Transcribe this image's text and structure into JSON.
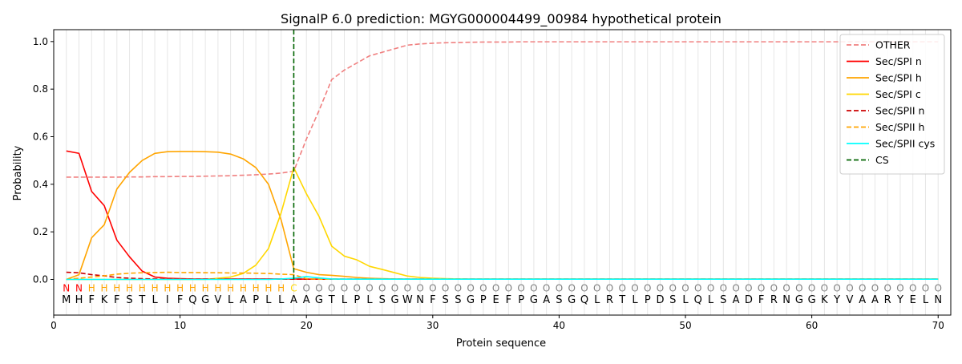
{
  "chart_data": {
    "type": "line",
    "title": "SignalP 6.0 prediction: MGYG000004499_00984 hypothetical protein",
    "xlabel": "Protein sequence",
    "ylabel": "Probability",
    "xlim": [
      0,
      71
    ],
    "ylim": [
      -0.15,
      1.05
    ],
    "x_ticks": [
      0,
      10,
      20,
      30,
      40,
      50,
      60,
      70
    ],
    "y_ticks": [
      0.0,
      0.2,
      0.4,
      0.6,
      0.8,
      1.0
    ],
    "x_tick_labels": [
      "0",
      "10",
      "20",
      "30",
      "40",
      "50",
      "60",
      "70"
    ],
    "y_tick_labels": [
      "0.0",
      "0.2",
      "0.4",
      "0.6",
      "0.8",
      "1.0"
    ],
    "grid": "vertical lines at every residue",
    "legend_position": "top-right",
    "sequence": [
      "M",
      "H",
      "F",
      "K",
      "F",
      "S",
      "T",
      "L",
      "I",
      "F",
      "Q",
      "G",
      "V",
      "L",
      "A",
      "P",
      "L",
      "L",
      "A",
      "A",
      "G",
      "T",
      "L",
      "P",
      "L",
      "S",
      "G",
      "W",
      "N",
      "F",
      "S",
      "S",
      "G",
      "P",
      "E",
      "F",
      "P",
      "G",
      "A",
      "S",
      "G",
      "Q",
      "L",
      "R",
      "T",
      "L",
      "P",
      "D",
      "S",
      "L",
      "Q",
      "L",
      "S",
      "A",
      "D",
      "F",
      "R",
      "N",
      "G",
      "G",
      "K",
      "Y",
      "V",
      "A",
      "A",
      "R",
      "Y",
      "E",
      "L",
      "N"
    ],
    "region_labels": [
      "N",
      "N",
      "H",
      "H",
      "H",
      "H",
      "H",
      "H",
      "H",
      "H",
      "H",
      "H",
      "H",
      "H",
      "H",
      "H",
      "H",
      "H",
      "C",
      "O",
      "O",
      "O",
      "O",
      "O",
      "O",
      "O",
      "O",
      "O",
      "O",
      "O",
      "O",
      "O",
      "O",
      "O",
      "O",
      "O",
      "O",
      "O",
      "O",
      "O",
      "O",
      "O",
      "O",
      "O",
      "O",
      "O",
      "O",
      "O",
      "O",
      "O",
      "O",
      "O",
      "O",
      "O",
      "O",
      "O",
      "O",
      "O",
      "O",
      "O",
      "O",
      "O",
      "O",
      "O",
      "O",
      "O",
      "O",
      "O",
      "O",
      "O"
    ],
    "region_colors": {
      "N": "#ff0000",
      "H": "#ffa500",
      "C": "#ffd700",
      "O": "#808080"
    },
    "cs_position": 19,
    "x": [
      1,
      2,
      3,
      4,
      5,
      6,
      7,
      8,
      9,
      10,
      11,
      12,
      13,
      14,
      15,
      16,
      17,
      18,
      19,
      20,
      21,
      22,
      23,
      24,
      25,
      26,
      27,
      28,
      29,
      30,
      31,
      32,
      33,
      34,
      35,
      36,
      37,
      38,
      39,
      40,
      41,
      42,
      43,
      44,
      45,
      46,
      47,
      48,
      49,
      50,
      51,
      52,
      53,
      54,
      55,
      56,
      57,
      58,
      59,
      60,
      61,
      62,
      63,
      64,
      65,
      66,
      67,
      68,
      69,
      70
    ],
    "series": [
      {
        "name": "OTHER",
        "color": "#f08080",
        "style": "dashed",
        "values": [
          0.43,
          0.43,
          0.43,
          0.43,
          0.43,
          0.431,
          0.431,
          0.432,
          0.432,
          0.433,
          0.433,
          0.434,
          0.435,
          0.436,
          0.438,
          0.44,
          0.443,
          0.447,
          0.455,
          0.59,
          0.71,
          0.84,
          0.88,
          0.91,
          0.94,
          0.955,
          0.97,
          0.985,
          0.99,
          0.993,
          0.995,
          0.996,
          0.997,
          0.998,
          0.998,
          0.998,
          0.999,
          0.999,
          0.999,
          0.999,
          0.999,
          0.999,
          0.999,
          0.999,
          0.999,
          0.999,
          0.999,
          0.999,
          0.999,
          0.999,
          0.999,
          0.999,
          0.999,
          0.999,
          0.999,
          0.999,
          0.999,
          0.999,
          0.999,
          0.999,
          0.999,
          0.999,
          0.999,
          0.999,
          0.999,
          0.999,
          0.999,
          0.999,
          0.999,
          0.999
        ]
      },
      {
        "name": "Sec/SPI n",
        "color": "#ff0000",
        "style": "solid",
        "values": [
          0.54,
          0.53,
          0.37,
          0.31,
          0.165,
          0.095,
          0.035,
          0.01,
          0.005,
          0.003,
          0.002,
          0.002,
          0.002,
          0.002,
          0.002,
          0.002,
          0.002,
          0.002,
          0.002,
          0.001,
          0.001,
          0.001,
          0.001,
          0.001,
          0.001,
          0.001,
          0.001,
          0.001,
          0.001,
          0.001,
          0.001,
          0.001,
          0.001,
          0.001,
          0.001,
          0.001,
          0.001,
          0.001,
          0.001,
          0.001,
          0.001,
          0.001,
          0.001,
          0.001,
          0.001,
          0.001,
          0.001,
          0.001,
          0.001,
          0.001,
          0.001,
          0.001,
          0.001,
          0.001,
          0.001,
          0.001,
          0.001,
          0.001,
          0.001,
          0.001,
          0.001,
          0.001,
          0.001,
          0.001,
          0.001,
          0.001,
          0.001,
          0.001,
          0.001,
          0.001
        ]
      },
      {
        "name": "Sec/SPI h",
        "color": "#ffa500",
        "style": "solid",
        "values": [
          0.0,
          0.02,
          0.175,
          0.23,
          0.38,
          0.45,
          0.5,
          0.53,
          0.537,
          0.538,
          0.538,
          0.537,
          0.535,
          0.527,
          0.507,
          0.47,
          0.4,
          0.25,
          0.045,
          0.03,
          0.02,
          0.017,
          0.013,
          0.008,
          0.005,
          0.003,
          0.002,
          0.001,
          0.001,
          0.001,
          0.001,
          0.001,
          0.001,
          0.001,
          0.001,
          0.001,
          0.001,
          0.001,
          0.001,
          0.001,
          0.001,
          0.001,
          0.001,
          0.001,
          0.001,
          0.001,
          0.001,
          0.001,
          0.001,
          0.001,
          0.001,
          0.001,
          0.001,
          0.001,
          0.001,
          0.001,
          0.001,
          0.001,
          0.001,
          0.001,
          0.001,
          0.001,
          0.001,
          0.001,
          0.001,
          0.001,
          0.001,
          0.001,
          0.001,
          0.001
        ]
      },
      {
        "name": "Sec/SPI c",
        "color": "#ffd700",
        "style": "solid",
        "values": [
          0.0,
          0.0,
          0.0,
          0.0,
          0.0,
          0.0,
          0.0,
          0.0,
          0.0,
          0.0,
          0.0,
          0.0,
          0.005,
          0.01,
          0.025,
          0.06,
          0.13,
          0.28,
          0.47,
          0.36,
          0.265,
          0.14,
          0.098,
          0.082,
          0.055,
          0.042,
          0.028,
          0.014,
          0.008,
          0.005,
          0.003,
          0.002,
          0.001,
          0.001,
          0.001,
          0.001,
          0.001,
          0.001,
          0.001,
          0.001,
          0.001,
          0.001,
          0.001,
          0.001,
          0.001,
          0.001,
          0.001,
          0.001,
          0.001,
          0.001,
          0.001,
          0.001,
          0.001,
          0.001,
          0.001,
          0.001,
          0.001,
          0.001,
          0.001,
          0.001,
          0.001,
          0.001,
          0.001,
          0.001,
          0.001,
          0.001,
          0.001,
          0.001,
          0.001,
          0.001
        ]
      },
      {
        "name": "Sec/SPII n",
        "color": "#cc0000",
        "style": "dashed",
        "values": [
          0.03,
          0.028,
          0.02,
          0.015,
          0.008,
          0.005,
          0.003,
          0.002,
          0.001,
          0.001,
          0.001,
          0.001,
          0.001,
          0.001,
          0.001,
          0.001,
          0.001,
          0.001,
          0.001,
          0.001,
          0.001,
          0.001,
          0.001,
          0.001,
          0.001,
          0.001,
          0.001,
          0.001,
          0.001,
          0.001,
          0.001,
          0.001,
          0.001,
          0.001,
          0.001,
          0.001,
          0.001,
          0.001,
          0.001,
          0.001,
          0.001,
          0.001,
          0.001,
          0.001,
          0.001,
          0.001,
          0.001,
          0.001,
          0.001,
          0.001,
          0.001,
          0.001,
          0.001,
          0.001,
          0.001,
          0.001,
          0.001,
          0.001,
          0.001,
          0.001,
          0.001,
          0.001,
          0.001,
          0.001,
          0.001,
          0.001,
          0.001,
          0.001,
          0.001,
          0.001
        ]
      },
      {
        "name": "Sec/SPII h",
        "color": "#ffa500",
        "style": "dashed",
        "values": [
          0.0,
          0.005,
          0.01,
          0.015,
          0.022,
          0.026,
          0.028,
          0.029,
          0.03,
          0.029,
          0.029,
          0.028,
          0.028,
          0.027,
          0.027,
          0.026,
          0.025,
          0.022,
          0.02,
          0.003,
          0.001,
          0.001,
          0.001,
          0.001,
          0.001,
          0.001,
          0.001,
          0.001,
          0.001,
          0.001,
          0.001,
          0.001,
          0.001,
          0.001,
          0.001,
          0.001,
          0.001,
          0.001,
          0.001,
          0.001,
          0.001,
          0.001,
          0.001,
          0.001,
          0.001,
          0.001,
          0.001,
          0.001,
          0.001,
          0.001,
          0.001,
          0.001,
          0.001,
          0.001,
          0.001,
          0.001,
          0.001,
          0.001,
          0.001,
          0.001,
          0.001,
          0.001,
          0.001,
          0.001,
          0.001,
          0.001,
          0.001,
          0.001,
          0.001,
          0.001
        ]
      },
      {
        "name": "Sec/SPII cys",
        "color": "#00ffff",
        "style": "solid",
        "values": [
          0.0,
          0.0,
          0.0,
          0.0,
          0.0,
          0.0,
          0.0,
          0.0,
          0.0,
          0.0,
          0.0,
          0.0,
          0.0,
          0.0,
          0.0,
          0.0,
          0.0,
          0.002,
          0.005,
          0.012,
          0.006,
          0.002,
          0.001,
          0.001,
          0.001,
          0.001,
          0.001,
          0.001,
          0.001,
          0.001,
          0.001,
          0.001,
          0.001,
          0.001,
          0.001,
          0.001,
          0.001,
          0.001,
          0.001,
          0.001,
          0.001,
          0.001,
          0.001,
          0.001,
          0.001,
          0.001,
          0.001,
          0.001,
          0.001,
          0.001,
          0.001,
          0.001,
          0.001,
          0.001,
          0.001,
          0.001,
          0.001,
          0.001,
          0.001,
          0.001,
          0.001,
          0.001,
          0.001,
          0.001,
          0.001,
          0.001,
          0.001,
          0.001,
          0.001,
          0.001
        ]
      }
    ],
    "legend": [
      {
        "label": "OTHER",
        "color": "#f08080",
        "style": "dashed"
      },
      {
        "label": "Sec/SPI n",
        "color": "#ff0000",
        "style": "solid"
      },
      {
        "label": "Sec/SPI h",
        "color": "#ffa500",
        "style": "solid"
      },
      {
        "label": "Sec/SPI c",
        "color": "#ffd700",
        "style": "solid"
      },
      {
        "label": "Sec/SPII n",
        "color": "#cc0000",
        "style": "dashed"
      },
      {
        "label": "Sec/SPII h",
        "color": "#ffa500",
        "style": "dashed"
      },
      {
        "label": "Sec/SPII cys",
        "color": "#00ffff",
        "style": "solid"
      },
      {
        "label": "CS",
        "color": "#006400",
        "style": "dashed"
      }
    ]
  }
}
